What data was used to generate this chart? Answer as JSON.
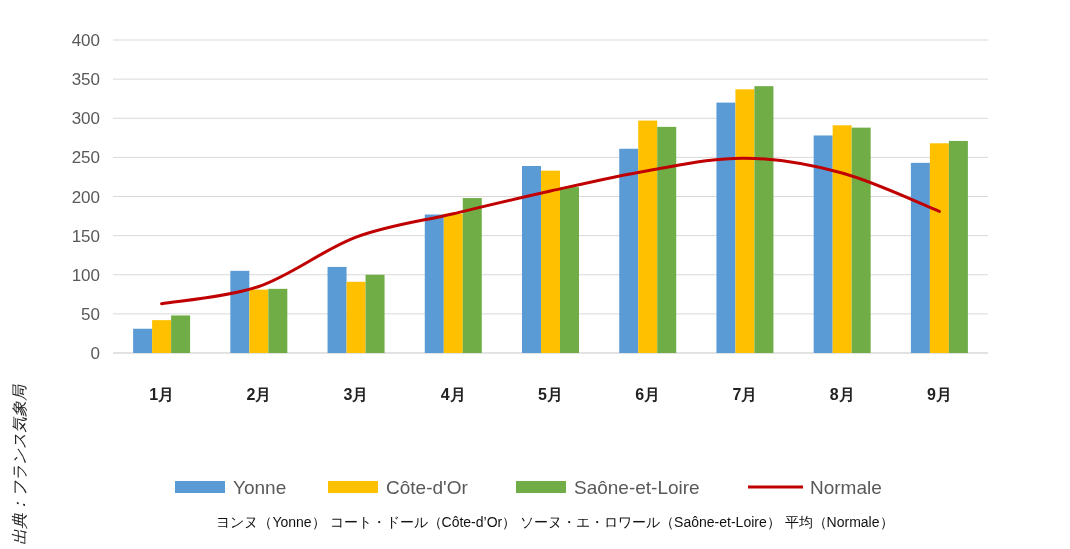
{
  "chart_data": {
    "type": "bar",
    "categories": [
      "1月",
      "2月",
      "3月",
      "4月",
      "5月",
      "6月",
      "7月",
      "8月",
      "9月"
    ],
    "series": [
      {
        "name": "Yonne",
        "color": "#5b9bd5",
        "values": [
          31,
          105,
          110,
          177,
          239,
          261,
          320,
          278,
          243
        ]
      },
      {
        "name": "Côte-d'Or",
        "color": "#ffc000",
        "values": [
          42,
          81,
          91,
          178,
          233,
          297,
          337,
          291,
          268
        ]
      },
      {
        "name": "Saône-et-Loire",
        "color": "#70ad47",
        "values": [
          48,
          82,
          100,
          198,
          212,
          289,
          341,
          288,
          271
        ]
      },
      {
        "name": "Normale",
        "type": "line",
        "color": "#c00000",
        "values": [
          63,
          85,
          148,
          178,
          207,
          233,
          249,
          230,
          181
        ]
      }
    ],
    "ylim": [
      0,
      400
    ],
    "yticks": [
      0,
      50,
      100,
      150,
      200,
      250,
      300,
      350,
      400
    ],
    "grid": "y",
    "legend": "bottom",
    "marker": "none",
    "line_style": "solid",
    "annotations": [
      "出典：フランス気象局",
      "ヨンヌ（Yonne） コート・ドール（Côte-d’Or） ソーヌ・エ・ロワール（Saône-et-Loire） 平均（Normale）"
    ]
  }
}
